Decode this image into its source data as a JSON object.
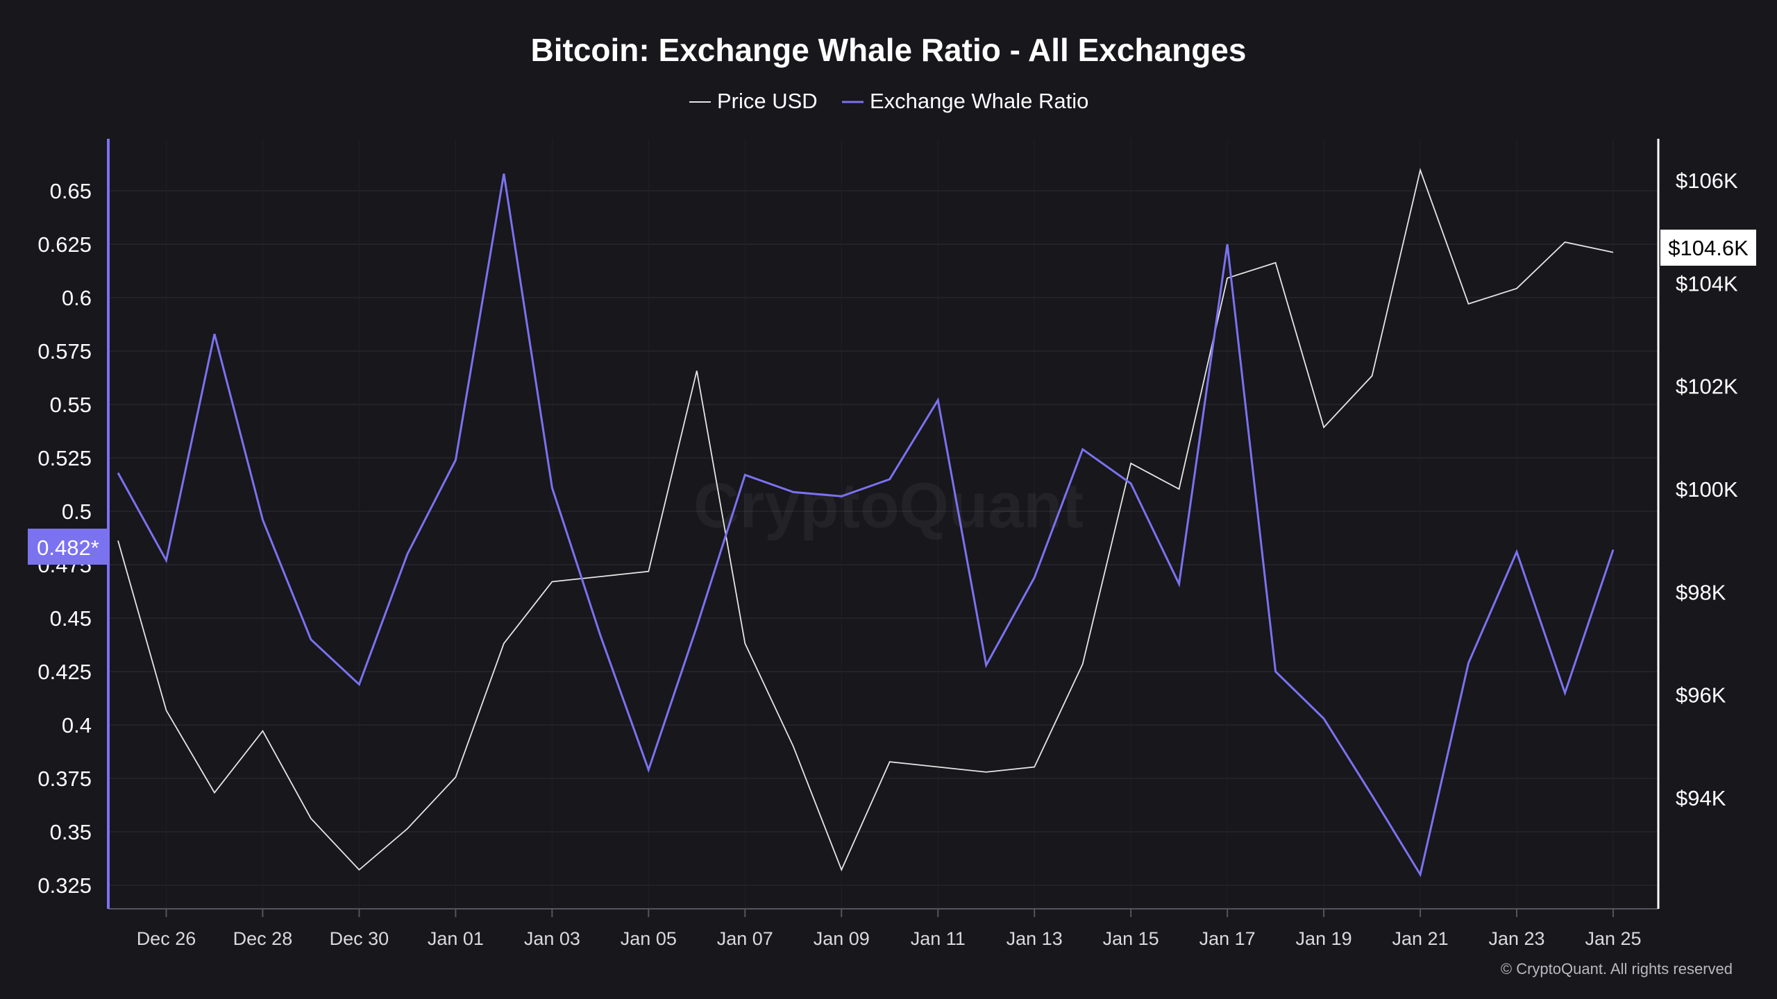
{
  "chart_data": {
    "type": "line",
    "title": "Bitcoin: Exchange Whale Ratio - All Exchanges",
    "legend_position": "top-center",
    "grid": true,
    "watermark": "CryptoQuant",
    "footer": "© CryptoQuant. All rights reserved",
    "x": [
      "2024-12-25",
      "2024-12-26",
      "2024-12-27",
      "2024-12-28",
      "2024-12-29",
      "2024-12-30",
      "2024-12-31",
      "2025-01-01",
      "2025-01-02",
      "2025-01-03",
      "2025-01-04",
      "2025-01-05",
      "2025-01-06",
      "2025-01-07",
      "2025-01-08",
      "2025-01-09",
      "2025-01-10",
      "2025-01-11",
      "2025-01-12",
      "2025-01-13",
      "2025-01-14",
      "2025-01-15",
      "2025-01-16",
      "2025-01-17",
      "2025-01-18",
      "2025-01-19",
      "2025-01-20",
      "2025-01-21",
      "2025-01-22",
      "2025-01-23",
      "2025-01-24",
      "2025-01-25"
    ],
    "x_tick_labels": [
      "Dec 26",
      "Dec 28",
      "Dec 30",
      "Jan 01",
      "Jan 03",
      "Jan 05",
      "Jan 07",
      "Jan 09",
      "Jan 11",
      "Jan 13",
      "Jan 15",
      "Jan 17",
      "Jan 19",
      "Jan 21",
      "Jan 23",
      "Jan 25"
    ],
    "y_left": {
      "ticks": [
        "0.65",
        "0.625",
        "0.6",
        "0.575",
        "0.55",
        "0.525",
        "0.5",
        "0.475",
        "0.45",
        "0.425",
        "0.4",
        "0.375",
        "0.35",
        "0.325"
      ],
      "range": [
        0.325,
        0.65
      ]
    },
    "y_right": {
      "ticks": [
        "$106K",
        "$104K",
        "$102K",
        "$100K",
        "$98K",
        "$96K",
        "$94K"
      ],
      "tick_values": [
        106000,
        104000,
        102000,
        100000,
        98000,
        96000,
        94000
      ],
      "range": [
        94000,
        106000
      ]
    },
    "series": [
      {
        "name": "Price USD",
        "axis": "right",
        "color": "#e6e6e6",
        "values": [
          99000,
          95700,
          94100,
          95300,
          93600,
          92600,
          93400,
          94400,
          97000,
          98200,
          98300,
          98400,
          102300,
          97000,
          95000,
          92600,
          94700,
          94600,
          94500,
          94600,
          96600,
          100500,
          100000,
          104100,
          104400,
          101200,
          102200,
          106200,
          103600,
          103900,
          104800,
          104600
        ]
      },
      {
        "name": "Exchange Whale Ratio",
        "axis": "left",
        "color": "#7b72f0",
        "values": [
          0.518,
          0.477,
          0.583,
          0.496,
          0.44,
          0.419,
          0.48,
          0.524,
          0.658,
          0.511,
          0.442,
          0.379,
          0.446,
          0.517,
          0.509,
          0.507,
          0.515,
          0.552,
          0.428,
          0.469,
          0.529,
          0.513,
          0.466,
          0.625,
          0.425,
          0.403,
          0.367,
          0.33,
          0.429,
          0.481,
          0.415,
          0.482
        ]
      }
    ],
    "current_labels": {
      "left": "0.482*",
      "right": "$104.6K"
    }
  }
}
